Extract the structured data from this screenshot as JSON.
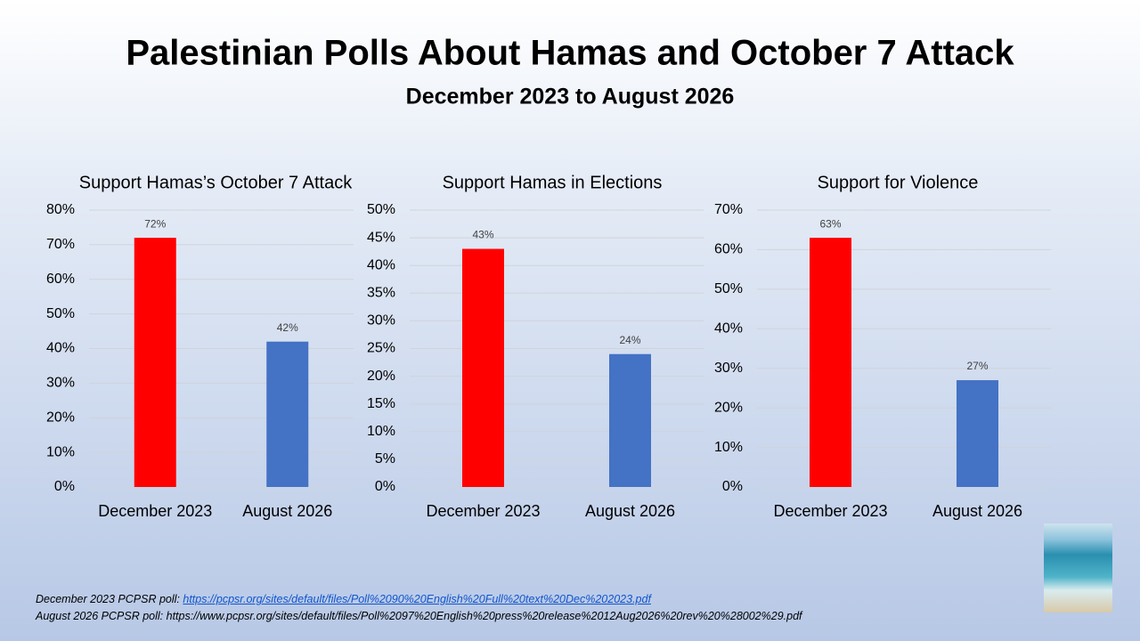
{
  "title": "Palestinian Polls About Hamas and October 7 Attack",
  "subtitle": "December 2023 to August 2026",
  "chart_data": [
    {
      "type": "bar",
      "title": "Support Hamas’s October 7 Attack",
      "categories": [
        "December 2023",
        "August 2026"
      ],
      "values": [
        72,
        42
      ],
      "value_labels": [
        "72%",
        "42%"
      ],
      "colors": [
        "#ff0000",
        "#4472c4"
      ],
      "ylim": [
        0,
        80
      ],
      "yticks": [
        {
          "value": 0,
          "label": "0%"
        },
        {
          "value": 10,
          "label": "10%"
        },
        {
          "value": 20,
          "label": "20%"
        },
        {
          "value": 30,
          "label": "30%"
        },
        {
          "value": 40,
          "label": "40%"
        },
        {
          "value": 50,
          "label": "50%"
        },
        {
          "value": 60,
          "label": "60%"
        },
        {
          "value": 70,
          "label": "70%"
        },
        {
          "value": 80,
          "label": "80%"
        }
      ],
      "grid": true
    },
    {
      "type": "bar",
      "title": "Support Hamas in Elections",
      "categories": [
        "December 2023",
        "August 2026"
      ],
      "values": [
        43,
        24
      ],
      "value_labels": [
        "43%",
        "24%"
      ],
      "colors": [
        "#ff0000",
        "#4472c4"
      ],
      "ylim": [
        0,
        50
      ],
      "yticks": [
        {
          "value": 0,
          "label": "0%"
        },
        {
          "value": 5,
          "label": "5%"
        },
        {
          "value": 10,
          "label": "10%"
        },
        {
          "value": 15,
          "label": "15%"
        },
        {
          "value": 20,
          "label": "20%"
        },
        {
          "value": 25,
          "label": "25%"
        },
        {
          "value": 30,
          "label": "30%"
        },
        {
          "value": 35,
          "label": "35%"
        },
        {
          "value": 40,
          "label": "40%"
        },
        {
          "value": 45,
          "label": "45%"
        },
        {
          "value": 50,
          "label": "50%"
        }
      ],
      "grid": true
    },
    {
      "type": "bar",
      "title": "Support for Violence",
      "categories": [
        "December 2023",
        "August 2026"
      ],
      "values": [
        63,
        27
      ],
      "value_labels": [
        "63%",
        "27%"
      ],
      "colors": [
        "#ff0000",
        "#4472c4"
      ],
      "ylim": [
        0,
        70
      ],
      "yticks": [
        {
          "value": 0,
          "label": "0%"
        },
        {
          "value": 10,
          "label": "10%"
        },
        {
          "value": 20,
          "label": "20%"
        },
        {
          "value": 30,
          "label": "30%"
        },
        {
          "value": 40,
          "label": "40%"
        },
        {
          "value": 50,
          "label": "50%"
        },
        {
          "value": 60,
          "label": "60%"
        },
        {
          "value": 70,
          "label": "70%"
        }
      ],
      "grid": true
    }
  ],
  "sources": [
    {
      "label": "December 2023 PCPSR poll:",
      "url": "https://pcpsr.org/sites/default/files/Poll%2090%20English%20Full%20text%20Dec%202023.pdf"
    },
    {
      "label": "August 2026 PCPSR poll:",
      "url": "https://www.pcpsr.org/sites/default/files/Poll%2097%20English%20press%20release%2012Aug2026%20rev%20%28002%29.pdf"
    }
  ]
}
